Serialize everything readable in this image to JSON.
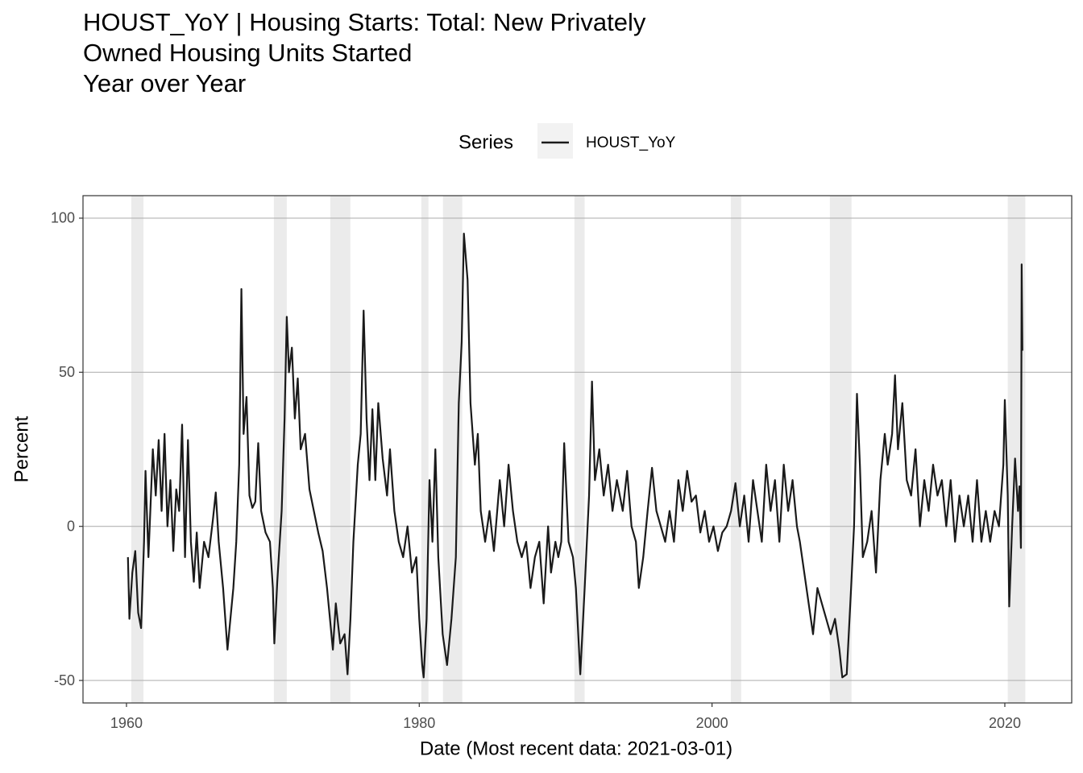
{
  "chart_data": {
    "type": "line",
    "title": [
      "HOUST_YoY | Housing Starts: Total: New Privately",
      "Owned Housing Units Started",
      "Year over Year"
    ],
    "x_label": "Date (Most recent data: 2021-03-01)",
    "y_label": "Percent",
    "legend_title": "Series",
    "xlim": [
      1957.03,
      2024.57
    ],
    "ylim": [
      -57.3,
      107.3
    ],
    "xticks": [
      1960,
      1980,
      2000,
      2020
    ],
    "yticks": [
      -50,
      0,
      50,
      100
    ],
    "grid": true,
    "recession_color": "#ebebeb",
    "recessions": [
      [
        1960.33,
        1961.16
      ],
      [
        1970.07,
        1970.95
      ],
      [
        1973.92,
        1975.29
      ],
      [
        1980.14,
        1980.63
      ],
      [
        1981.62,
        1982.94
      ],
      [
        1990.6,
        1991.3
      ],
      [
        2001.28,
        2001.99
      ],
      [
        2008.05,
        2009.53
      ],
      [
        2020.2,
        2021.4
      ]
    ],
    "series": [
      {
        "name": "HOUST_YoY",
        "color": "#1a1a1a",
        "x": [
          1960.1,
          1960.2,
          1960.4,
          1960.6,
          1960.8,
          1961.0,
          1961.2,
          1961.3,
          1961.5,
          1961.8,
          1962.0,
          1962.2,
          1962.4,
          1962.6,
          1962.8,
          1963.0,
          1963.2,
          1963.4,
          1963.6,
          1963.8,
          1964.0,
          1964.2,
          1964.4,
          1964.6,
          1964.8,
          1965.0,
          1965.3,
          1965.6,
          1965.9,
          1966.1,
          1966.3,
          1966.6,
          1966.9,
          1967.1,
          1967.3,
          1967.5,
          1967.7,
          1967.85,
          1968.0,
          1968.2,
          1968.4,
          1968.6,
          1968.8,
          1969.0,
          1969.2,
          1969.5,
          1969.8,
          1970.0,
          1970.1,
          1970.3,
          1970.6,
          1970.8,
          1970.95,
          1971.1,
          1971.3,
          1971.5,
          1971.7,
          1971.9,
          1972.2,
          1972.5,
          1972.8,
          1973.1,
          1973.4,
          1973.7,
          1973.9,
          1974.1,
          1974.3,
          1974.6,
          1974.9,
          1975.1,
          1975.3,
          1975.5,
          1975.8,
          1976.0,
          1976.2,
          1976.4,
          1976.6,
          1976.8,
          1977.0,
          1977.2,
          1977.5,
          1977.8,
          1978.0,
          1978.3,
          1978.6,
          1978.9,
          1979.2,
          1979.5,
          1979.8,
          1980.0,
          1980.2,
          1980.3,
          1980.5,
          1980.7,
          1980.9,
          1981.1,
          1981.3,
          1981.6,
          1981.9,
          1982.2,
          1982.5,
          1982.7,
          1982.9,
          1983.05,
          1983.3,
          1983.5,
          1983.8,
          1984.0,
          1984.2,
          1984.5,
          1984.8,
          1985.1,
          1985.5,
          1985.8,
          1986.1,
          1986.4,
          1986.7,
          1987.0,
          1987.3,
          1987.6,
          1987.9,
          1988.2,
          1988.5,
          1988.8,
          1989.0,
          1989.3,
          1989.5,
          1989.7,
          1989.9,
          1990.2,
          1990.5,
          1990.7,
          1991.0,
          1991.3,
          1991.6,
          1991.8,
          1992.0,
          1992.3,
          1992.6,
          1992.9,
          1993.2,
          1993.5,
          1993.9,
          1994.2,
          1994.5,
          1994.8,
          1995.0,
          1995.3,
          1995.6,
          1995.9,
          1996.2,
          1996.5,
          1996.8,
          1997.1,
          1997.4,
          1997.7,
          1998.0,
          1998.3,
          1998.6,
          1998.9,
          1999.2,
          1999.5,
          1999.8,
          2000.1,
          2000.4,
          2000.7,
          2001.0,
          2001.3,
          2001.6,
          2001.9,
          2002.2,
          2002.5,
          2002.8,
          2003.1,
          2003.4,
          2003.7,
          2004.0,
          2004.3,
          2004.6,
          2004.9,
          2005.2,
          2005.5,
          2005.8,
          2006.0,
          2006.3,
          2006.6,
          2006.9,
          2007.2,
          2007.5,
          2007.8,
          2008.1,
          2008.4,
          2008.7,
          2008.9,
          2009.2,
          2009.5,
          2009.7,
          2009.9,
          2010.1,
          2010.3,
          2010.6,
          2010.9,
          2011.2,
          2011.5,
          2011.8,
          2012.0,
          2012.3,
          2012.5,
          2012.7,
          2013.0,
          2013.3,
          2013.6,
          2013.9,
          2014.2,
          2014.5,
          2014.8,
          2015.1,
          2015.4,
          2015.7,
          2016.0,
          2016.3,
          2016.6,
          2016.9,
          2017.2,
          2017.5,
          2017.8,
          2018.1,
          2018.4,
          2018.7,
          2019.0,
          2019.3,
          2019.6,
          2019.9,
          2020.0,
          2020.2,
          2020.3,
          2020.5,
          2020.7,
          2020.9,
          2021.0,
          2021.1,
          2021.15,
          2021.2
        ],
        "values": [
          -10,
          -30,
          -15,
          -8,
          -28,
          -33,
          -5,
          18,
          -10,
          25,
          10,
          28,
          5,
          30,
          0,
          15,
          -8,
          12,
          5,
          33,
          -10,
          28,
          -5,
          -18,
          -2,
          -20,
          -5,
          -10,
          2,
          11,
          -5,
          -20,
          -40,
          -30,
          -20,
          -5,
          20,
          77,
          30,
          42,
          10,
          6,
          8,
          27,
          5,
          -2,
          -5,
          -20,
          -38,
          -18,
          5,
          35,
          68,
          50,
          58,
          35,
          48,
          25,
          30,
          12,
          5,
          -2,
          -8,
          -20,
          -30,
          -40,
          -25,
          -38,
          -35,
          -48,
          -30,
          -5,
          20,
          30,
          70,
          35,
          15,
          38,
          15,
          40,
          22,
          10,
          25,
          5,
          -5,
          -10,
          0,
          -15,
          -10,
          -30,
          -45,
          -49,
          -30,
          15,
          -5,
          25,
          -10,
          -35,
          -45,
          -30,
          -10,
          40,
          60,
          95,
          80,
          40,
          20,
          30,
          5,
          -5,
          5,
          -8,
          15,
          0,
          20,
          5,
          -5,
          -10,
          -5,
          -20,
          -10,
          -5,
          -25,
          0,
          -15,
          -5,
          -10,
          -5,
          27,
          -5,
          -10,
          -20,
          -48,
          -20,
          10,
          47,
          15,
          25,
          10,
          20,
          5,
          15,
          5,
          18,
          0,
          -5,
          -20,
          -10,
          5,
          19,
          5,
          0,
          -5,
          5,
          -5,
          15,
          5,
          18,
          8,
          10,
          -2,
          5,
          -5,
          0,
          -8,
          -2,
          0,
          5,
          14,
          0,
          10,
          -5,
          15,
          5,
          -5,
          20,
          5,
          15,
          -5,
          20,
          5,
          15,
          0,
          -5,
          -15,
          -25,
          -35,
          -20,
          -25,
          -30,
          -35,
          -30,
          -40,
          -49,
          -48,
          -20,
          0,
          43,
          20,
          -10,
          -5,
          5,
          -15,
          15,
          30,
          20,
          30,
          49,
          25,
          40,
          15,
          10,
          25,
          0,
          15,
          5,
          20,
          10,
          15,
          0,
          15,
          -5,
          10,
          0,
          10,
          -5,
          15,
          -5,
          5,
          -5,
          5,
          0,
          20,
          41,
          10,
          -26,
          0,
          22,
          5,
          13,
          -7,
          85,
          57
        ]
      }
    ]
  }
}
